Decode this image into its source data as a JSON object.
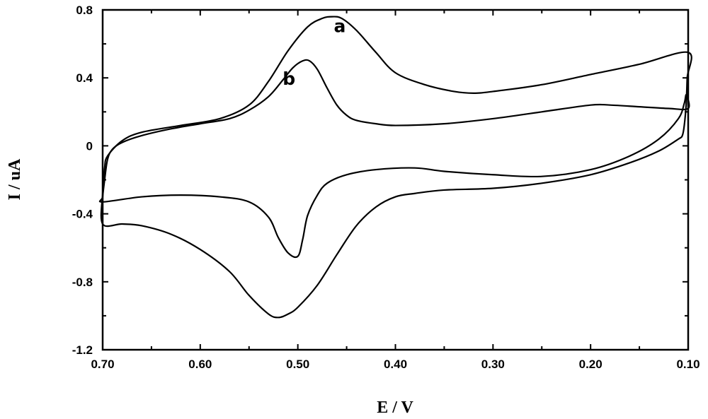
{
  "chart_data": {
    "type": "line",
    "title": "",
    "xlabel": "E / V",
    "ylabel": "I / uA",
    "xlim": [
      0.7,
      0.1
    ],
    "ylim": [
      -1.2,
      0.8
    ],
    "x_reversed": true,
    "grid": false,
    "xticks": [
      0.7,
      0.6,
      0.5,
      0.4,
      0.3,
      0.2,
      0.1
    ],
    "xtick_labels": [
      "0.70",
      "0.60",
      "0.50",
      "0.40",
      "0.30",
      "0.20",
      "0.10"
    ],
    "yticks": [
      0.8,
      0.4,
      0,
      -0.4,
      -0.8,
      -1.2
    ],
    "ytick_labels": [
      "0.8",
      "0.4",
      "0",
      "-0.4",
      "-0.8",
      "-1.2"
    ],
    "annotations": [
      {
        "text": "a",
        "x": 0.457,
        "y": 0.67
      },
      {
        "text": "b",
        "x": 0.509,
        "y": 0.36
      }
    ],
    "series": [
      {
        "label": "a",
        "x": [
          0.7,
          0.698,
          0.695,
          0.68,
          0.66,
          0.62,
          0.58,
          0.55,
          0.53,
          0.51,
          0.49,
          0.475,
          0.465,
          0.455,
          0.44,
          0.42,
          0.4,
          0.37,
          0.34,
          0.32,
          0.3,
          0.25,
          0.2,
          0.15,
          0.1,
          0.101,
          0.102,
          0.104,
          0.106,
          0.11,
          0.13,
          0.16,
          0.2,
          0.25,
          0.3,
          0.35,
          0.38,
          0.4,
          0.42,
          0.44,
          0.46,
          0.48,
          0.5,
          0.51,
          0.52,
          0.53,
          0.55,
          0.57,
          0.6,
          0.63,
          0.66,
          0.68,
          0.7
        ],
        "y": [
          -0.28,
          -0.13,
          -0.06,
          0.03,
          0.08,
          0.12,
          0.16,
          0.24,
          0.38,
          0.56,
          0.7,
          0.75,
          0.76,
          0.75,
          0.68,
          0.55,
          0.43,
          0.36,
          0.32,
          0.31,
          0.32,
          0.36,
          0.42,
          0.48,
          0.55,
          0.4,
          0.25,
          0.12,
          0.06,
          0.04,
          -0.03,
          -0.1,
          -0.17,
          -0.22,
          -0.25,
          -0.26,
          -0.28,
          -0.3,
          -0.36,
          -0.47,
          -0.64,
          -0.82,
          -0.95,
          -0.99,
          -1.01,
          -0.99,
          -0.88,
          -0.74,
          -0.61,
          -0.52,
          -0.47,
          -0.46,
          -0.46
        ]
      },
      {
        "label": "b",
        "x": [
          0.7,
          0.698,
          0.695,
          0.69,
          0.68,
          0.66,
          0.63,
          0.6,
          0.57,
          0.55,
          0.53,
          0.515,
          0.505,
          0.495,
          0.488,
          0.48,
          0.47,
          0.46,
          0.45,
          0.44,
          0.42,
          0.4,
          0.35,
          0.3,
          0.25,
          0.2,
          0.18,
          0.15,
          0.12,
          0.1,
          0.102,
          0.104,
          0.11,
          0.13,
          0.16,
          0.2,
          0.25,
          0.3,
          0.35,
          0.38,
          0.42,
          0.45,
          0.47,
          0.48,
          0.49,
          0.495,
          0.5,
          0.51,
          0.52,
          0.53,
          0.55,
          0.58,
          0.62,
          0.66,
          0.7
        ],
        "y": [
          -0.3,
          -0.2,
          -0.08,
          -0.02,
          0.02,
          0.06,
          0.1,
          0.13,
          0.16,
          0.21,
          0.29,
          0.39,
          0.46,
          0.5,
          0.5,
          0.45,
          0.34,
          0.24,
          0.18,
          0.15,
          0.13,
          0.12,
          0.13,
          0.16,
          0.2,
          0.24,
          0.24,
          0.23,
          0.22,
          0.22,
          0.3,
          0.25,
          0.16,
          0.04,
          -0.06,
          -0.14,
          -0.18,
          -0.17,
          -0.15,
          -0.13,
          -0.14,
          -0.17,
          -0.22,
          -0.29,
          -0.41,
          -0.55,
          -0.65,
          -0.63,
          -0.54,
          -0.42,
          -0.33,
          -0.3,
          -0.29,
          -0.3,
          -0.33
        ]
      }
    ]
  }
}
